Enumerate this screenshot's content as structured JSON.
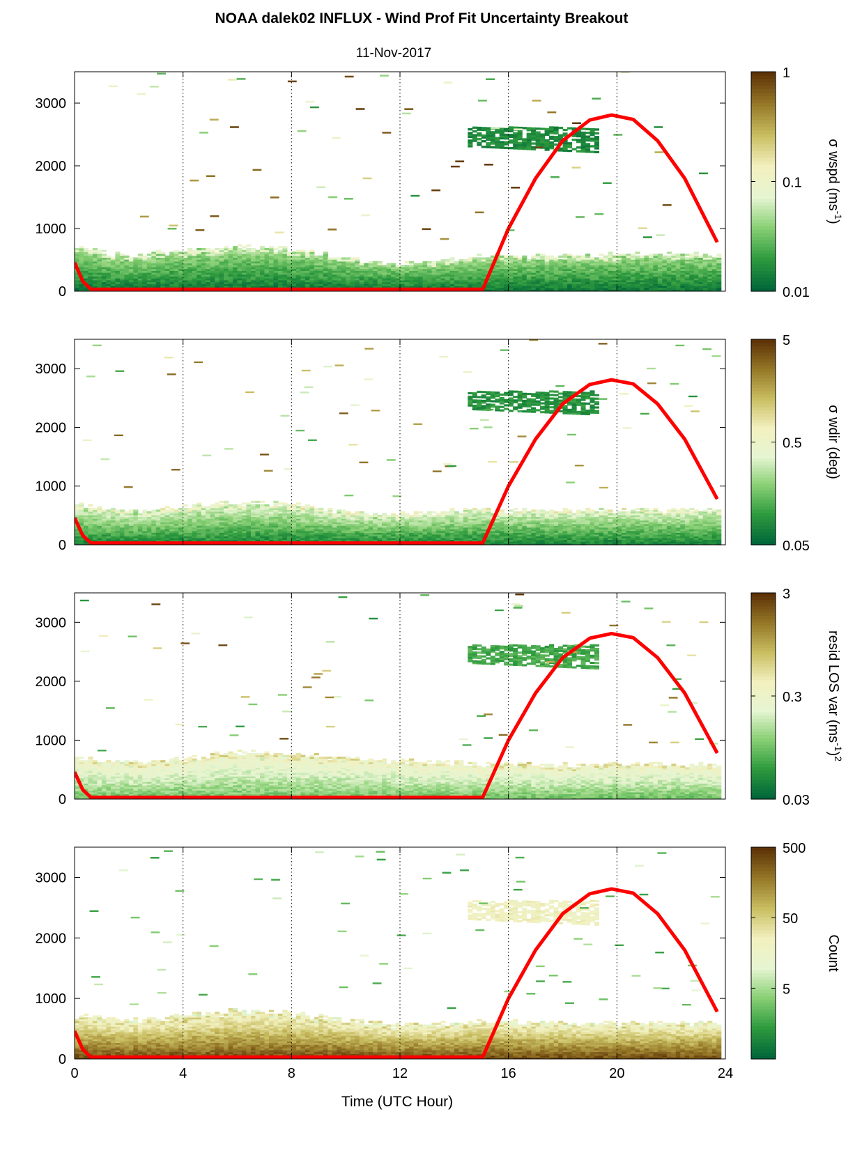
{
  "title": "NOAA dalek02 INFLUX - Wind Prof Fit Uncertainty Breakout",
  "subtitle": "11-Nov-2017",
  "xlabel": "Time (UTC Hour)",
  "colors": {
    "colormap": [
      "#00663a",
      "#2e9a3e",
      "#88cf74",
      "#e6f5d2",
      "#f2f0bf",
      "#c9be62",
      "#967929",
      "#5e3307"
    ],
    "sun_curve": "#ff0000",
    "white": "#ffffff"
  },
  "chart_data": [
    {
      "type": "heatmap",
      "xlim": [
        0,
        24
      ],
      "ylim": [
        0,
        3500
      ],
      "xticks": [
        0,
        4,
        8,
        12,
        16,
        20,
        24
      ],
      "yticks": [
        0,
        1000,
        2000,
        3000
      ],
      "grid": "vertical dotted",
      "colorbar": {
        "label": "σ wspd (ms",
        "sup": "-1",
        "suffix": ")",
        "scale": "log",
        "ticks": [
          "1",
          "0.1",
          "0.01"
        ],
        "range": [
          0.01,
          1
        ]
      },
      "boundary_layer": {
        "top_profile": [
          [
            0,
            700
          ],
          [
            2,
            560
          ],
          [
            4,
            650
          ],
          [
            6,
            720
          ],
          [
            8,
            680
          ],
          [
            10,
            520
          ],
          [
            12,
            430
          ],
          [
            14,
            500
          ],
          [
            15,
            560
          ],
          [
            18,
            570
          ],
          [
            21,
            600
          ],
          [
            23.7,
            590
          ]
        ],
        "cmap_low": 0.05,
        "cmap_high": 0.35
      },
      "upper_layer": {
        "x_range": [
          14.5,
          19.2
        ],
        "y_range": [
          2300,
          2600
        ],
        "cmap_level": 0.1
      },
      "sun_elevation": {
        "x": [
          0,
          0.3,
          0.6,
          15.05,
          16,
          17,
          18,
          19,
          19.8,
          20.6,
          21.5,
          22.5,
          23.7
        ],
        "y": [
          460,
          160,
          30,
          30,
          1000,
          1800,
          2400,
          2730,
          2810,
          2740,
          2400,
          1800,
          780
        ]
      }
    },
    {
      "type": "heatmap",
      "xlim": [
        0,
        24
      ],
      "ylim": [
        0,
        3500
      ],
      "xticks": [
        0,
        4,
        8,
        12,
        16,
        20,
        24
      ],
      "yticks": [
        0,
        1000,
        2000,
        3000
      ],
      "grid": "vertical dotted",
      "colorbar": {
        "label": "σ wdir (deg)",
        "sup": "",
        "suffix": "",
        "scale": "log",
        "ticks": [
          "5",
          "0.5",
          "0.05"
        ],
        "range": [
          0.05,
          5
        ]
      },
      "boundary_layer": {
        "top_profile": [
          [
            0,
            700
          ],
          [
            2,
            560
          ],
          [
            4,
            650
          ],
          [
            6,
            720
          ],
          [
            8,
            680
          ],
          [
            10,
            560
          ],
          [
            12,
            520
          ],
          [
            14,
            580
          ],
          [
            15,
            600
          ],
          [
            18,
            590
          ],
          [
            21,
            600
          ],
          [
            23.7,
            590
          ]
        ],
        "cmap_low": 0.08,
        "cmap_high": 0.45
      },
      "upper_layer": {
        "x_range": [
          14.5,
          19.2
        ],
        "y_range": [
          2300,
          2600
        ],
        "cmap_level": 0.12
      },
      "sun_elevation": {
        "x": [
          0,
          0.3,
          0.6,
          15.05,
          16,
          17,
          18,
          19,
          19.8,
          20.6,
          21.5,
          22.5,
          23.7
        ],
        "y": [
          460,
          160,
          30,
          30,
          1000,
          1800,
          2400,
          2730,
          2810,
          2740,
          2400,
          1800,
          780
        ]
      }
    },
    {
      "type": "heatmap",
      "xlim": [
        0,
        24
      ],
      "ylim": [
        0,
        3500
      ],
      "xticks": [
        0,
        4,
        8,
        12,
        16,
        20,
        24
      ],
      "yticks": [
        0,
        1000,
        2000,
        3000
      ],
      "grid": "vertical dotted",
      "colorbar": {
        "label": "resid LOS var (ms",
        "sup": "-1",
        "suffix": ")",
        "sup2": "2",
        "scale": "log",
        "ticks": [
          "3",
          "0.3",
          "0.03"
        ],
        "range": [
          0.03,
          3
        ]
      },
      "boundary_layer": {
        "top_profile": [
          [
            0,
            720
          ],
          [
            2,
            620
          ],
          [
            4,
            700
          ],
          [
            6,
            800
          ],
          [
            8,
            760
          ],
          [
            10,
            700
          ],
          [
            12,
            650
          ],
          [
            14,
            620
          ],
          [
            15,
            600
          ],
          [
            18,
            580
          ],
          [
            21,
            600
          ],
          [
            23.7,
            590
          ]
        ],
        "cmap_low": 0.25,
        "cmap_high": 0.55
      },
      "upper_layer": {
        "x_range": [
          14.5,
          19.2
        ],
        "y_range": [
          2300,
          2600
        ],
        "cmap_level": 0.18
      },
      "sun_elevation": {
        "x": [
          0,
          0.3,
          0.6,
          15.05,
          16,
          17,
          18,
          19,
          19.8,
          20.6,
          21.5,
          22.5,
          23.7
        ],
        "y": [
          460,
          160,
          30,
          30,
          1000,
          1800,
          2400,
          2730,
          2810,
          2740,
          2400,
          1800,
          780
        ]
      }
    },
    {
      "type": "heatmap",
      "xlim": [
        0,
        24
      ],
      "ylim": [
        0,
        3500
      ],
      "xticks": [
        0,
        4,
        8,
        12,
        16,
        20,
        24
      ],
      "yticks": [
        0,
        1000,
        2000,
        3000
      ],
      "grid": "vertical dotted",
      "colorbar": {
        "label": "Count",
        "sup": "",
        "suffix": "",
        "scale": "log",
        "ticks": [
          "500",
          "50",
          "5"
        ],
        "range": [
          0.5,
          500
        ]
      },
      "boundary_layer": {
        "top_profile": [
          [
            0,
            720
          ],
          [
            2,
            640
          ],
          [
            4,
            720
          ],
          [
            6,
            800
          ],
          [
            8,
            760
          ],
          [
            10,
            650
          ],
          [
            12,
            560
          ],
          [
            14,
            600
          ],
          [
            15,
            620
          ],
          [
            18,
            590
          ],
          [
            21,
            600
          ],
          [
            23.7,
            590
          ]
        ],
        "cmap_low": 0.95,
        "cmap_high": 0.5
      },
      "upper_layer": {
        "x_range": [
          14.5,
          19.2
        ],
        "y_range": [
          2300,
          2600
        ],
        "cmap_level": 0.55
      },
      "sun_elevation": {
        "x": [
          0,
          0.3,
          0.6,
          15.05,
          16,
          17,
          18,
          19,
          19.8,
          20.6,
          21.5,
          22.5,
          23.7
        ],
        "y": [
          460,
          160,
          30,
          30,
          1000,
          1800,
          2400,
          2730,
          2810,
          2740,
          2400,
          1800,
          780
        ]
      }
    }
  ]
}
